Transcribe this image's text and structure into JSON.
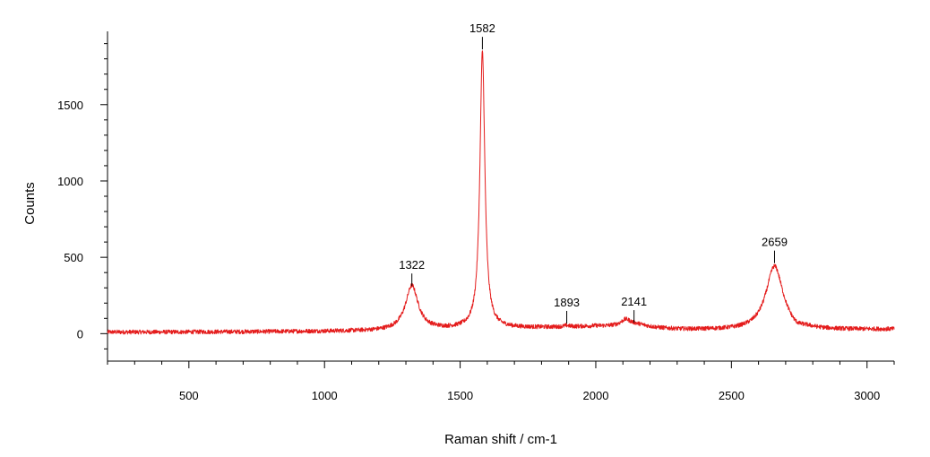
{
  "chart_data": {
    "type": "line",
    "title": "",
    "xlabel": "Raman shift / cm-1",
    "ylabel": "Counts",
    "xlim": [
      200,
      3100
    ],
    "ylim": [
      -180,
      1980
    ],
    "x_ticks": [
      500,
      1000,
      1500,
      2000,
      2500,
      3000
    ],
    "y_ticks": [
      0,
      500,
      1000,
      1500
    ],
    "x_minor_step": 100,
    "y_minor_step": 100,
    "grid": false,
    "legend": "none",
    "color": "#e41c1c",
    "series": [
      {
        "name": "",
        "x_range": [
          200,
          3100
        ],
        "baseline_points": [
          [
            200,
            10
          ],
          [
            400,
            10
          ],
          [
            700,
            12
          ],
          [
            1000,
            15
          ],
          [
            1200,
            18
          ],
          [
            1500,
            30
          ],
          [
            1800,
            38
          ],
          [
            2000,
            45
          ],
          [
            2300,
            25
          ],
          [
            2500,
            22
          ],
          [
            2750,
            22
          ],
          [
            3100,
            28
          ]
        ],
        "peaks": [
          {
            "center": 1322,
            "height": 290,
            "width": 28
          },
          {
            "center": 1582,
            "height": 1810,
            "width": 11
          },
          {
            "center": 1893,
            "height": 8,
            "width": 10
          },
          {
            "center": 2110,
            "height": 35,
            "width": 20
          },
          {
            "center": 2141,
            "height": 25,
            "width": 60
          },
          {
            "center": 2659,
            "height": 420,
            "width": 38
          }
        ],
        "noise_amplitude": 14,
        "samples": 2900
      }
    ],
    "annotations": [
      {
        "text": "1322",
        "x": 1322,
        "y": 300
      },
      {
        "text": "1582",
        "x": 1582,
        "y": 1850
      },
      {
        "text": "1893",
        "x": 1893,
        "y": 55
      },
      {
        "text": "2141",
        "x": 2141,
        "y": 60
      },
      {
        "text": "2659",
        "x": 2659,
        "y": 450
      }
    ]
  }
}
